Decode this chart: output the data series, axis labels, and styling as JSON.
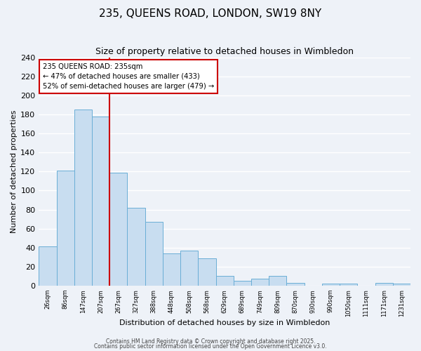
{
  "title": "235, QUEENS ROAD, LONDON, SW19 8NY",
  "subtitle": "Size of property relative to detached houses in Wimbledon",
  "xlabel": "Distribution of detached houses by size in Wimbledon",
  "ylabel": "Number of detached properties",
  "bar_color": "#c8ddf0",
  "bar_edge_color": "#6aaed6",
  "background_color": "#eef2f8",
  "grid_color": "#ffffff",
  "categories": [
    "26sqm",
    "86sqm",
    "147sqm",
    "207sqm",
    "267sqm",
    "327sqm",
    "388sqm",
    "448sqm",
    "508sqm",
    "568sqm",
    "629sqm",
    "689sqm",
    "749sqm",
    "809sqm",
    "870sqm",
    "930sqm",
    "990sqm",
    "1050sqm",
    "1111sqm",
    "1171sqm",
    "1231sqm"
  ],
  "values": [
    41,
    121,
    185,
    178,
    119,
    82,
    67,
    34,
    37,
    29,
    10,
    5,
    7,
    10,
    3,
    0,
    2,
    2,
    0,
    3,
    2
  ],
  "vline_x": 3.5,
  "vline_color": "#cc0000",
  "annotation_title": "235 QUEENS ROAD: 235sqm",
  "annotation_line2": "← 47% of detached houses are smaller (433)",
  "annotation_line3": "52% of semi-detached houses are larger (479) →",
  "annotation_box_color": "#ffffff",
  "annotation_box_edge": "#cc0000",
  "ylim": [
    0,
    240
  ],
  "yticks": [
    0,
    20,
    40,
    60,
    80,
    100,
    120,
    140,
    160,
    180,
    200,
    220,
    240
  ],
  "footnote1": "Contains HM Land Registry data © Crown copyright and database right 2025.",
  "footnote2": "Contains public sector information licensed under the Open Government Licence v3.0."
}
